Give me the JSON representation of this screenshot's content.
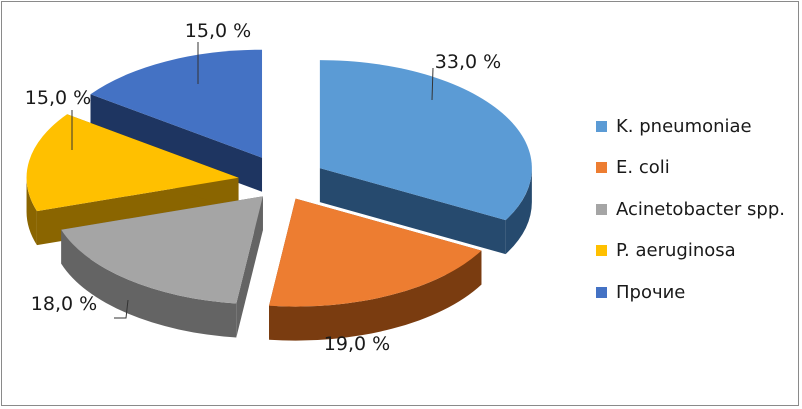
{
  "chart_data": {
    "type": "pie",
    "style": "3d-exploded",
    "title": "",
    "legend_position": "right",
    "slices": [
      {
        "label": "K. pneumoniae",
        "value": 33.0,
        "value_label": "33,0 %",
        "color": "#5b9bd5",
        "side_color": "#264a6e"
      },
      {
        "label": "E. coli",
        "value": 19.0,
        "value_label": "19,0 %",
        "color": "#ed7d31",
        "side_color": "#7a3c10"
      },
      {
        "label": "Acinetobacter spp.",
        "value": 18.0,
        "value_label": "18,0 %",
        "color": "#a5a5a5",
        "side_color": "#646464"
      },
      {
        "label": "P. aeruginosa",
        "value": 15.0,
        "value_label": "15,0 %",
        "color": "#ffc000",
        "side_color": "#8a6500"
      },
      {
        "label": "Прочие",
        "value": 15.0,
        "value_label": "15,0 %",
        "color": "#4472c4",
        "side_color": "#1e3561"
      }
    ]
  }
}
